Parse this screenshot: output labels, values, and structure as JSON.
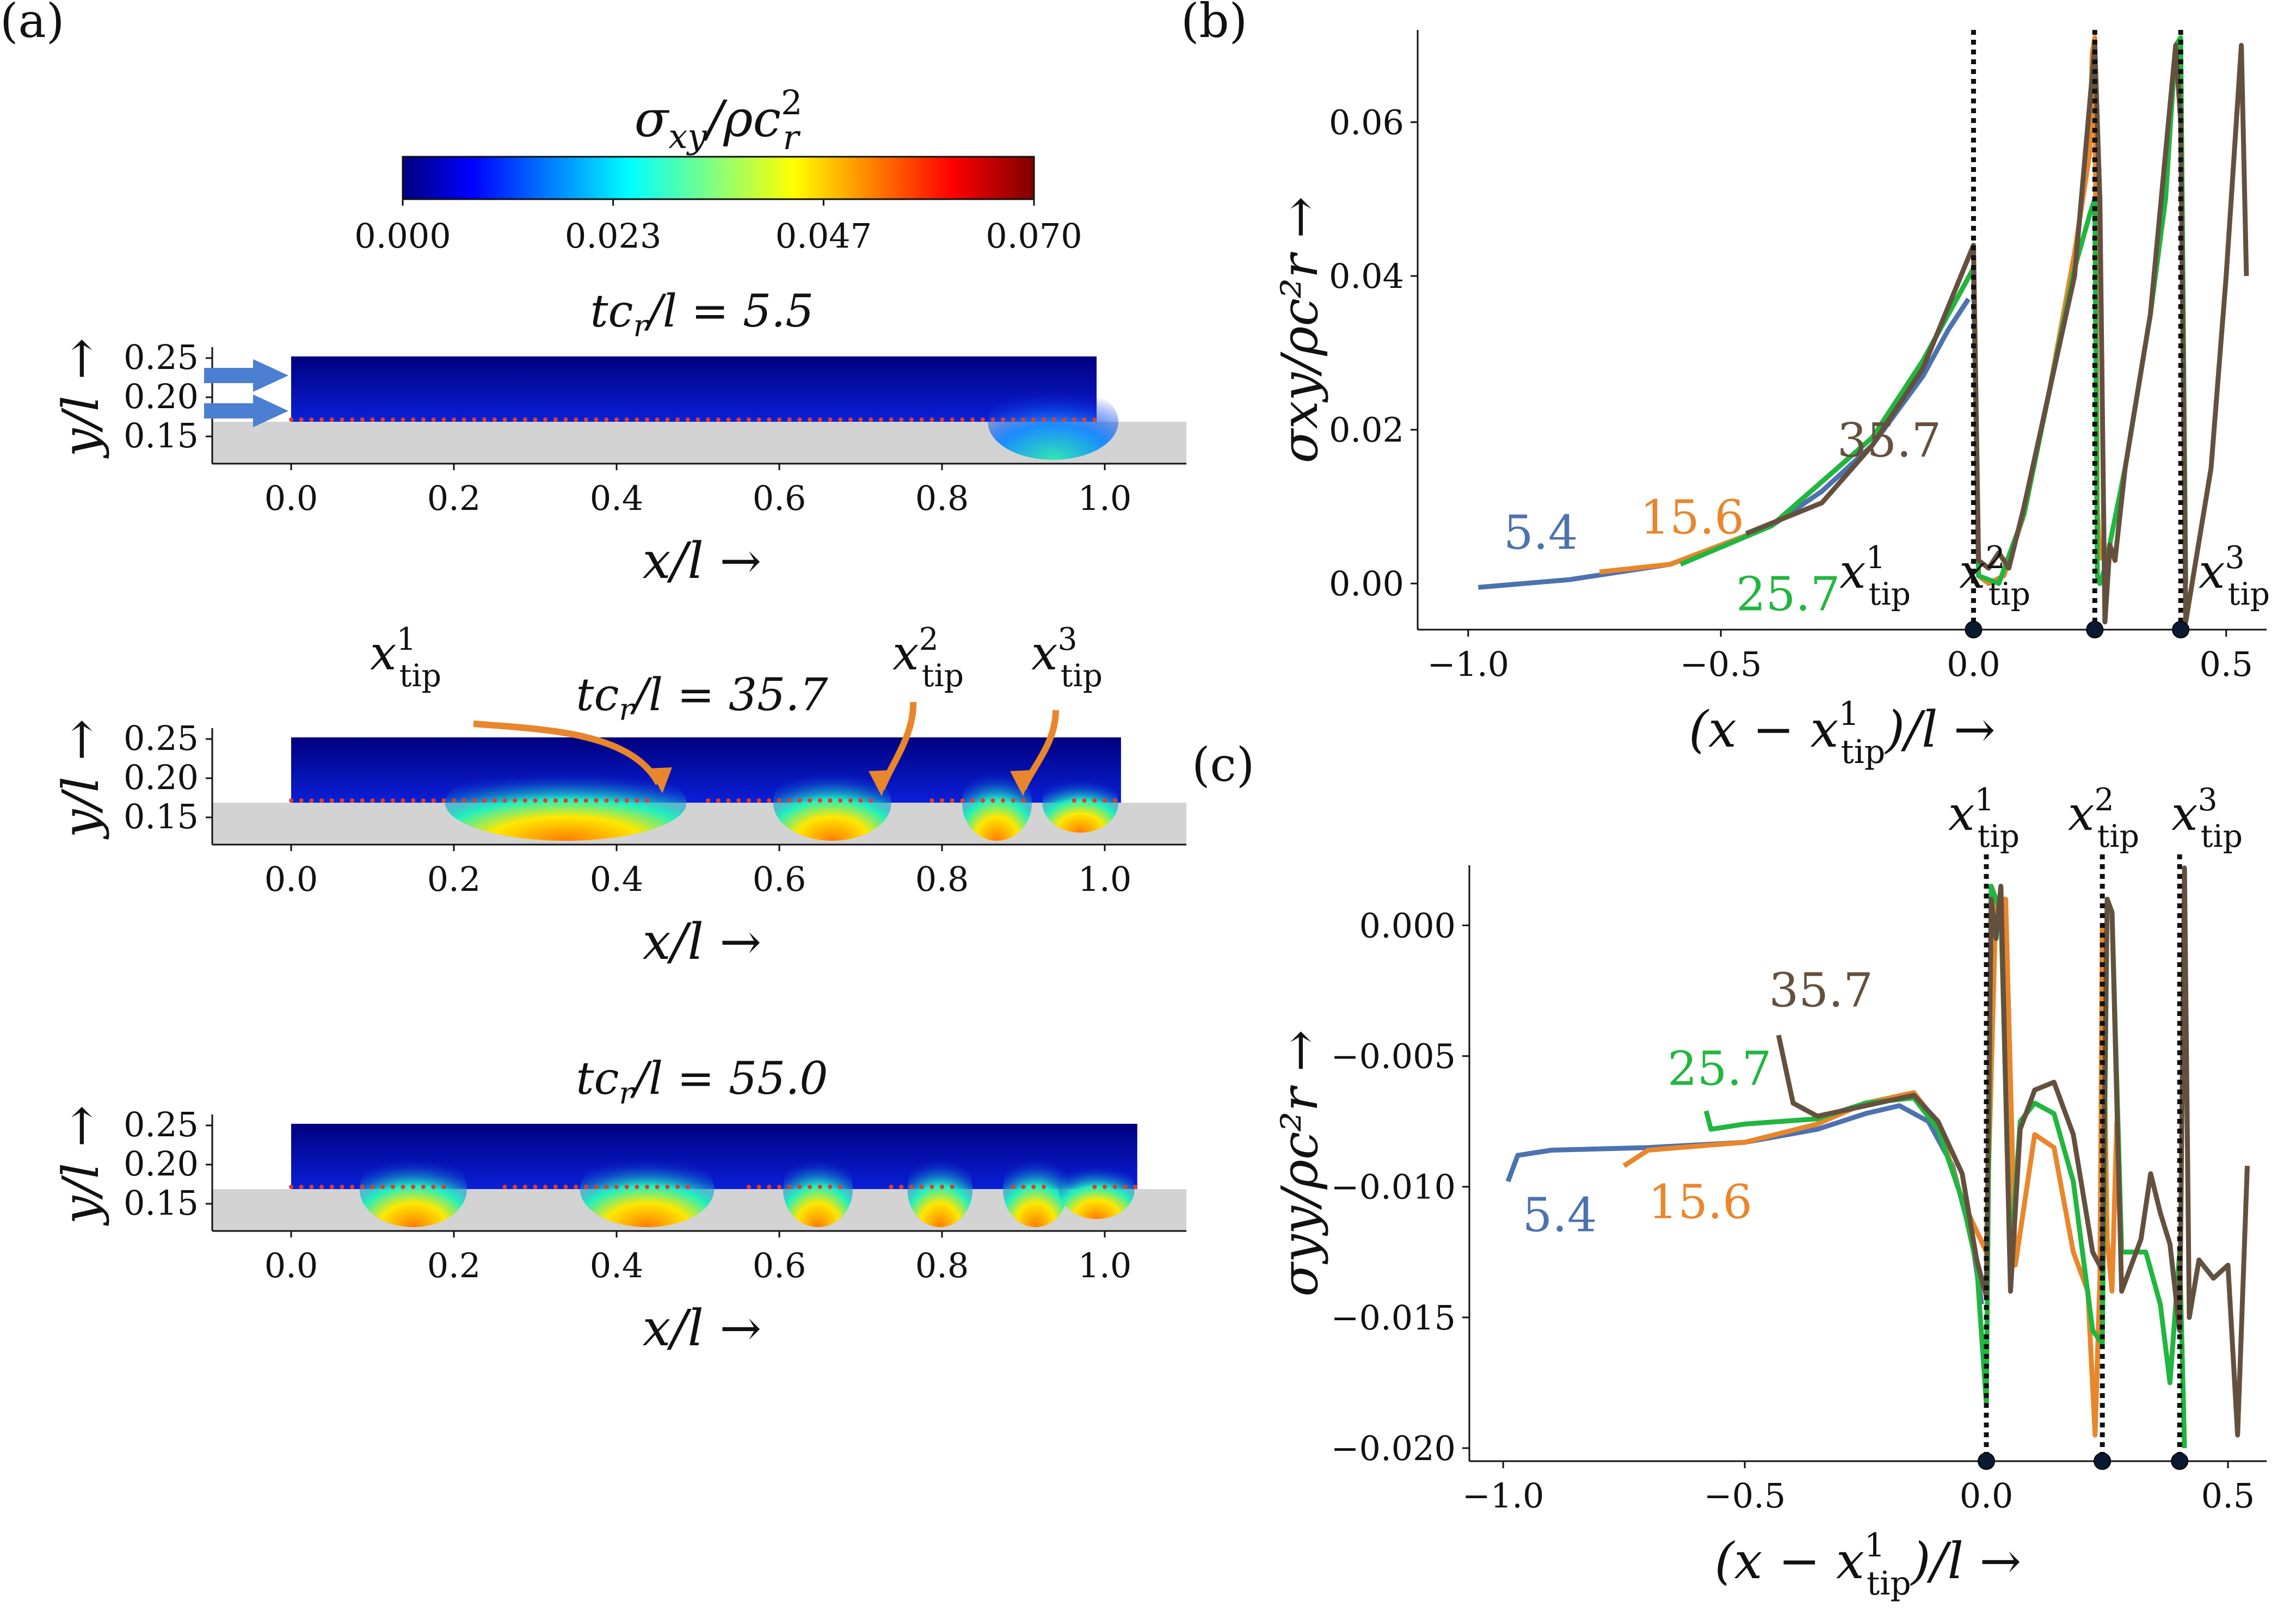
{
  "colors": {
    "blue": "#4c72b0",
    "orange": "#e9862b",
    "green": "#21b63f",
    "brown": "#64503e",
    "arrow_blue": "#4a7fd1",
    "arrow_orange": "#e9862b",
    "substrate": "#d3d3d3",
    "dots": "#e03c32"
  },
  "panel_a": {
    "label": "(a)",
    "colorbar": {
      "title_main": "σ",
      "title_sub": "xy",
      "title_rest": "/ρc",
      "title_sup": "2",
      "title_rsub": "r",
      "ticks": [
        "0.000",
        "0.023",
        "0.047",
        "0.070"
      ],
      "range": [
        0.0,
        0.07
      ],
      "colormap": "jet"
    },
    "snapshots": [
      {
        "title_pre": "tc",
        "title_sub": "r",
        "title_post": "/l = 5.5",
        "x_extent": [
          0.0,
          0.99
        ],
        "top_y": 0.25,
        "tips": []
      },
      {
        "title_pre": "tc",
        "title_sub": "r",
        "title_post": "/l = 35.7",
        "x_extent": [
          0.0,
          1.02
        ],
        "top_y": 0.25,
        "tips": [
          0.45,
          0.72,
          0.9
        ]
      },
      {
        "title_pre": "tc",
        "title_sub": "r",
        "title_post": "/l = 55.0",
        "x_extent": [
          0.0,
          1.04
        ],
        "top_y": 0.25,
        "tips": [
          0.2,
          0.5,
          0.68,
          0.82,
          0.93
        ]
      }
    ],
    "xticks": [
      "0.0",
      "0.2",
      "0.4",
      "0.6",
      "0.8",
      "1.0"
    ],
    "yticks": [
      "0.25",
      "0.20",
      "0.15"
    ],
    "xlabel": "x/l →",
    "ylabel": "y/l →",
    "tip_label_main": "x",
    "tip_label_sub": "tip",
    "tip_sups": [
      "1",
      "2",
      "3"
    ]
  },
  "chart_data": [
    {
      "type": "line",
      "panel": "(b)",
      "xlabel_pre": "(x − x",
      "xlabel_sup": "1",
      "xlabel_sub": "tip",
      "xlabel_post": ")/l →",
      "ylabel": "σxy/ρc²r →",
      "xlim": [
        -1.1,
        0.58
      ],
      "ylim": [
        -0.006,
        0.072
      ],
      "xticks": [
        -1.0,
        -0.5,
        0.0,
        0.5
      ],
      "xtick_labels": [
        "−1.0",
        "−0.5",
        "0.0",
        "0.5"
      ],
      "yticks": [
        0.0,
        0.02,
        0.04,
        0.06
      ],
      "ytick_labels": [
        "0.00",
        "0.02",
        "0.04",
        "0.06"
      ],
      "tip_positions": [
        0.0,
        0.24,
        0.41
      ],
      "series": [
        {
          "name": "5.4",
          "color": "blue",
          "x": [
            -0.98,
            -0.8,
            -0.6,
            -0.4,
            -0.3,
            -0.2,
            -0.1,
            -0.05,
            -0.01
          ],
          "y": [
            -0.0005,
            0.0005,
            0.0025,
            0.0075,
            0.012,
            0.018,
            0.027,
            0.033,
            0.037
          ]
        },
        {
          "name": "15.6",
          "color": "orange",
          "x": [
            -0.74,
            -0.6,
            -0.4,
            -0.2,
            -0.1,
            0.0,
            0.01,
            0.03,
            0.06,
            0.1,
            0.15,
            0.2,
            0.23,
            0.235,
            0.24,
            0.245,
            0.25
          ],
          "y": [
            0.0015,
            0.0025,
            0.0075,
            0.019,
            0.029,
            0.041,
            0.001,
            0.0,
            0.001,
            0.009,
            0.025,
            0.043,
            0.056,
            0.069,
            0.071,
            0.01,
            0.003
          ]
        },
        {
          "name": "25.7",
          "color": "green",
          "x": [
            -0.58,
            -0.4,
            -0.2,
            -0.1,
            0.0,
            0.01,
            0.05,
            0.1,
            0.15,
            0.2,
            0.23,
            0.24,
            0.245,
            0.25,
            0.26,
            0.3,
            0.35,
            0.38,
            0.4,
            0.41,
            0.42
          ],
          "y": [
            0.0025,
            0.0075,
            0.019,
            0.029,
            0.041,
            0.001,
            0.0,
            0.009,
            0.025,
            0.041,
            0.048,
            0.05,
            0.001,
            0.0,
            0.002,
            0.015,
            0.035,
            0.05,
            0.07,
            0.071,
            0.0
          ]
        },
        {
          "name": "35.7",
          "color": "brown",
          "x": [
            -0.45,
            -0.3,
            -0.2,
            -0.1,
            0.0,
            0.01,
            0.03,
            0.05,
            0.07,
            0.1,
            0.15,
            0.2,
            0.24,
            0.25,
            0.26,
            0.27,
            0.28,
            0.3,
            0.35,
            0.4,
            0.41,
            0.42,
            0.44,
            0.47,
            0.5,
            0.53,
            0.54
          ],
          "y": [
            0.0065,
            0.0105,
            0.018,
            0.028,
            0.044,
            0.003,
            0.002,
            0.004,
            0.002,
            0.01,
            0.025,
            0.04,
            0.07,
            0.05,
            -0.005,
            0.005,
            0.003,
            0.015,
            0.035,
            0.07,
            0.06,
            -0.005,
            0.003,
            0.015,
            0.04,
            0.07,
            0.04
          ]
        }
      ],
      "series_labels": [
        {
          "text": "5.4",
          "color": "blue",
          "x": -0.93,
          "y": 0.0045
        },
        {
          "text": "15.6",
          "color": "orange",
          "x": -0.66,
          "y": 0.0065
        },
        {
          "text": "25.7",
          "color": "green",
          "x": -0.47,
          "y": -0.0035
        },
        {
          "text": "35.7",
          "color": "brown",
          "x": -0.27,
          "y": 0.0165
        }
      ],
      "tip_label_main": "x",
      "tip_label_sub": "tip",
      "tip_sups": [
        "1",
        "2",
        "3"
      ]
    },
    {
      "type": "line",
      "panel": "(c)",
      "xlabel_pre": "(x − x",
      "xlabel_sup": "1",
      "xlabel_sub": "tip",
      "xlabel_post": ")/l →",
      "ylabel": "σyy/ρc²r →",
      "xlim": [
        -1.07,
        0.58
      ],
      "ylim": [
        -0.0205,
        0.0023
      ],
      "xticks": [
        -1.0,
        -0.5,
        0.0,
        0.5
      ],
      "xtick_labels": [
        "−1.0",
        "−0.5",
        "0.0",
        "0.5"
      ],
      "yticks": [
        0.0,
        -0.005,
        -0.01,
        -0.015,
        -0.02
      ],
      "ytick_labels": [
        "0.000",
        "−0.005",
        "−0.010",
        "−0.015",
        "−0.020"
      ],
      "tip_positions": [
        0.0,
        0.24,
        0.4
      ],
      "series": [
        {
          "name": "5.4",
          "color": "blue",
          "x": [
            -0.99,
            -0.97,
            -0.9,
            -0.7,
            -0.5,
            -0.35,
            -0.25,
            -0.18,
            -0.12,
            -0.07,
            -0.03,
            -0.01
          ],
          "y": [
            -0.0098,
            -0.0088,
            -0.0086,
            -0.0085,
            -0.0083,
            -0.0078,
            -0.0072,
            -0.0069,
            -0.0075,
            -0.0092,
            -0.012,
            -0.0145
          ]
        },
        {
          "name": "15.6",
          "color": "orange",
          "x": [
            -0.75,
            -0.7,
            -0.5,
            -0.35,
            -0.25,
            -0.15,
            -0.1,
            -0.05,
            0.0,
            0.02,
            0.04,
            0.06,
            0.1,
            0.14,
            0.18,
            0.21,
            0.225,
            0.235,
            0.24,
            0.25,
            0.26,
            0.27
          ],
          "y": [
            -0.0092,
            -0.0086,
            -0.0083,
            -0.0076,
            -0.0068,
            -0.0064,
            -0.0076,
            -0.0105,
            -0.0125,
            0.001,
            0.001,
            -0.013,
            -0.008,
            -0.0085,
            -0.0125,
            -0.014,
            -0.0195,
            -0.0135,
            0.0,
            -0.012,
            -0.014,
            -0.0075
          ]
        },
        {
          "name": "25.7",
          "color": "green",
          "x": [
            -0.58,
            -0.57,
            -0.5,
            -0.35,
            -0.25,
            -0.15,
            -0.1,
            -0.05,
            -0.02,
            0.0,
            0.01,
            0.03,
            0.05,
            0.07,
            0.1,
            0.14,
            0.18,
            0.22,
            0.24,
            0.25,
            0.26,
            0.28,
            0.33,
            0.36,
            0.38,
            0.4,
            0.41
          ],
          "y": [
            -0.0071,
            -0.0078,
            -0.0076,
            -0.0074,
            -0.0068,
            -0.0066,
            -0.0078,
            -0.0105,
            -0.013,
            -0.0183,
            0.0015,
            0.0005,
            -0.013,
            -0.0075,
            -0.0068,
            -0.0072,
            -0.0098,
            -0.0155,
            -0.016,
            0.001,
            0.0005,
            -0.0125,
            -0.0125,
            -0.0145,
            -0.0175,
            -0.0125,
            -0.02
          ]
        },
        {
          "name": "35.7",
          "color": "brown",
          "x": [
            -0.43,
            -0.4,
            -0.35,
            -0.25,
            -0.15,
            -0.1,
            -0.05,
            -0.02,
            0.0,
            0.01,
            0.02,
            0.03,
            0.05,
            0.07,
            0.1,
            0.14,
            0.18,
            0.22,
            0.24,
            0.25,
            0.26,
            0.28,
            0.32,
            0.34,
            0.36,
            0.38,
            0.4,
            0.41,
            0.42,
            0.44,
            0.47,
            0.5,
            0.52,
            0.54
          ],
          "y": [
            -0.0042,
            -0.0068,
            -0.0073,
            -0.0069,
            -0.0065,
            -0.0075,
            -0.0095,
            -0.0128,
            -0.0142,
            0.001,
            -0.0005,
            0.0015,
            -0.014,
            -0.0078,
            -0.0063,
            -0.006,
            -0.008,
            -0.0125,
            -0.0132,
            0.001,
            0.0005,
            -0.014,
            -0.012,
            -0.0095,
            -0.011,
            -0.0122,
            -0.0155,
            0.0022,
            -0.015,
            -0.0128,
            -0.0135,
            -0.013,
            -0.0195,
            -0.0092
          ]
        }
      ],
      "series_labels": [
        {
          "text": "5.4",
          "color": "blue",
          "x": -0.96,
          "y": -0.0117
        },
        {
          "text": "15.6",
          "color": "orange",
          "x": -0.7,
          "y": -0.0112
        },
        {
          "text": "25.7",
          "color": "green",
          "x": -0.66,
          "y": -0.0061
        },
        {
          "text": "35.7",
          "color": "brown",
          "x": -0.45,
          "y": -0.0031
        }
      ],
      "tip_label_main": "x",
      "tip_label_sub": "tip",
      "tip_sups": [
        "1",
        "2",
        "3"
      ]
    }
  ]
}
